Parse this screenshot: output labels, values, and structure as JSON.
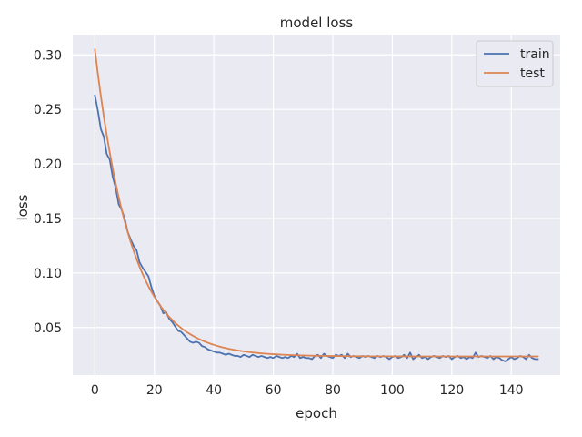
{
  "chart_data": {
    "type": "line",
    "title": "model loss",
    "xlabel": "epoch",
    "ylabel": "loss",
    "xlim": [
      -7.45,
      156.45
    ],
    "ylim": [
      0.0064,
      0.3186
    ],
    "xticks": [
      0,
      20,
      40,
      60,
      80,
      100,
      120,
      140
    ],
    "yticks": [
      0.05,
      0.1,
      0.15,
      0.2,
      0.25,
      0.3
    ],
    "ytick_labels": [
      "0.05",
      "0.10",
      "0.15",
      "0.20",
      "0.25",
      "0.30"
    ],
    "grid": true,
    "legend_position": "top-right",
    "series": [
      {
        "name": "train",
        "color": "#4c72b0",
        "values": [
          0.263,
          0.249,
          0.232,
          0.225,
          0.209,
          0.204,
          0.188,
          0.178,
          0.163,
          0.158,
          0.15,
          0.138,
          0.131,
          0.125,
          0.121,
          0.11,
          0.105,
          0.101,
          0.097,
          0.087,
          0.079,
          0.074,
          0.07,
          0.063,
          0.064,
          0.058,
          0.055,
          0.051,
          0.047,
          0.046,
          0.043,
          0.04,
          0.037,
          0.036,
          0.037,
          0.036,
          0.033,
          0.032,
          0.03,
          0.029,
          0.028,
          0.027,
          0.027,
          0.026,
          0.025,
          0.026,
          0.025,
          0.024,
          0.024,
          0.023,
          0.025,
          0.024,
          0.023,
          0.025,
          0.024,
          0.023,
          0.024,
          0.023,
          0.022,
          0.023,
          0.022,
          0.024,
          0.023,
          0.022,
          0.023,
          0.022,
          0.024,
          0.023,
          0.026,
          0.022,
          0.023,
          0.022,
          0.022,
          0.021,
          0.024,
          0.025,
          0.022,
          0.026,
          0.024,
          0.023,
          0.022,
          0.025,
          0.024,
          0.025,
          0.022,
          0.026,
          0.023,
          0.024,
          0.023,
          0.022,
          0.024,
          0.023,
          0.024,
          0.023,
          0.022,
          0.024,
          0.023,
          0.024,
          0.023,
          0.021,
          0.023,
          0.024,
          0.022,
          0.023,
          0.025,
          0.022,
          0.027,
          0.021,
          0.023,
          0.025,
          0.022,
          0.023,
          0.021,
          0.023,
          0.024,
          0.023,
          0.022,
          0.024,
          0.023,
          0.024,
          0.021,
          0.023,
          0.024,
          0.022,
          0.023,
          0.021,
          0.023,
          0.022,
          0.027,
          0.023,
          0.024,
          0.023,
          0.022,
          0.024,
          0.021,
          0.023,
          0.022,
          0.02,
          0.019,
          0.021,
          0.023,
          0.021,
          0.022,
          0.024,
          0.023,
          0.021,
          0.025,
          0.022,
          0.021,
          0.021
        ]
      },
      {
        "name": "test",
        "color": "#dd8452",
        "curve": {
          "y0": 0.305,
          "y_inf": 0.0235,
          "tau": 12.2,
          "epochs": 150
        }
      }
    ]
  }
}
